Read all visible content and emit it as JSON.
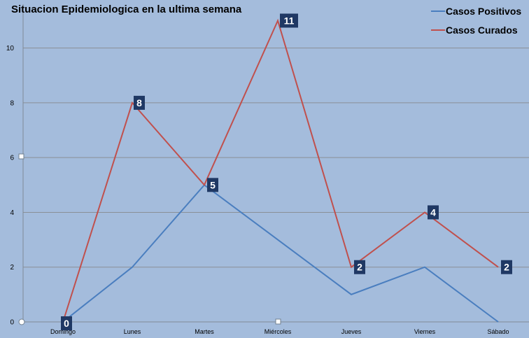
{
  "chart_data": {
    "type": "line",
    "title": "Situacion Epidemiologica  en la ultima semana",
    "categories": [
      "Domingo",
      "Lunes",
      "Martes",
      "Miércoles",
      "Jueves",
      "Viernes",
      "Sábado"
    ],
    "series": [
      {
        "name": "Casos Positivos",
        "color": "#4a7ebf",
        "values": [
          0,
          2,
          5,
          3,
          1,
          2,
          0
        ]
      },
      {
        "name": "Casos Curados",
        "color": "#c0504d",
        "values": [
          0,
          8,
          5,
          11,
          2,
          4,
          2
        ]
      }
    ],
    "data_labels": [
      {
        "category": "Domingo",
        "text": "0"
      },
      {
        "category": "Lunes",
        "text": "8"
      },
      {
        "category": "Martes",
        "text": "5"
      },
      {
        "category": "Miércoles",
        "text": "11"
      },
      {
        "category": "Jueves",
        "text": "2"
      },
      {
        "category": "Viernes",
        "text": "4"
      },
      {
        "category": "Sábado",
        "text": "2"
      }
    ],
    "yticks": [
      "0",
      "2",
      "4",
      "6",
      "8",
      "10"
    ],
    "ylim": [
      0,
      11.6
    ],
    "grid": true,
    "legend_position": "top-right",
    "xlabel": "",
    "ylabel": "",
    "colors": {
      "background": "#a4bcdc",
      "grid": "#8a8f96",
      "label_box": "#1f3864"
    }
  }
}
